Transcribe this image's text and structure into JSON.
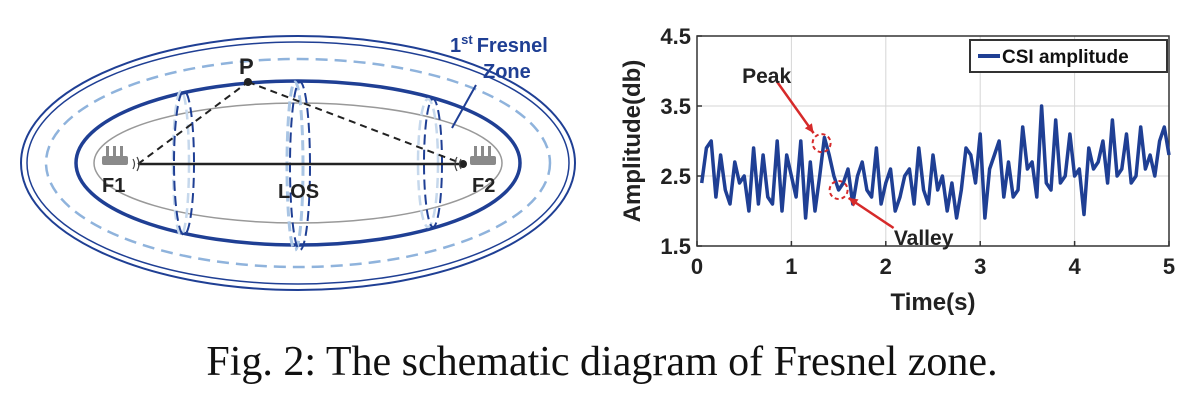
{
  "diagram": {
    "zone_label_sup": "st",
    "zone_label_line1_a": "1",
    "zone_label_line1_b": "Fresnel",
    "zone_label_line2": "Zone",
    "point_p": "P",
    "f1": "F1",
    "f2": "F2",
    "los": "LOS",
    "colors": {
      "zone": "#1f3f94",
      "zone_light": "#8fb3dc",
      "gray": "#999999",
      "router": "#8a8a8a"
    }
  },
  "chart_data": {
    "type": "line",
    "xlabel": "Time(s)",
    "ylabel": "Amplitude(db)",
    "xlim": [
      0,
      5
    ],
    "ylim": [
      1.5,
      4.5
    ],
    "xticks": [
      "0",
      "1",
      "2",
      "3",
      "4",
      "5"
    ],
    "yticks": [
      "1.5",
      "2.5",
      "3.5",
      "4.5"
    ],
    "legend": "top-right",
    "grid": true,
    "series": [
      {
        "name": "CSI amplitude",
        "color": "#1f3f94",
        "x": [
          0.05,
          0.1,
          0.15,
          0.2,
          0.25,
          0.3,
          0.35,
          0.4,
          0.45,
          0.5,
          0.55,
          0.6,
          0.65,
          0.7,
          0.75,
          0.8,
          0.85,
          0.9,
          0.95,
          1.0,
          1.05,
          1.1,
          1.15,
          1.2,
          1.25,
          1.3,
          1.35,
          1.4,
          1.45,
          1.5,
          1.55,
          1.6,
          1.65,
          1.7,
          1.75,
          1.8,
          1.85,
          1.9,
          1.95,
          2.0,
          2.05,
          2.1,
          2.15,
          2.2,
          2.25,
          2.3,
          2.35,
          2.4,
          2.45,
          2.5,
          2.55,
          2.6,
          2.65,
          2.7,
          2.75,
          2.8,
          2.85,
          2.9,
          2.95,
          3.0,
          3.05,
          3.1,
          3.15,
          3.2,
          3.25,
          3.3,
          3.35,
          3.4,
          3.45,
          3.5,
          3.55,
          3.6,
          3.65,
          3.7,
          3.75,
          3.8,
          3.85,
          3.9,
          3.95,
          4.0,
          4.05,
          4.1,
          4.15,
          4.2,
          4.25,
          4.3,
          4.35,
          4.4,
          4.45,
          4.5,
          4.55,
          4.6,
          4.65,
          4.7,
          4.75,
          4.8,
          4.85,
          4.9,
          4.95,
          5.0
        ],
        "values": [
          2.4,
          2.9,
          3.0,
          2.2,
          2.8,
          2.3,
          2.1,
          2.7,
          2.4,
          2.5,
          2.0,
          2.9,
          2.1,
          2.8,
          2.2,
          2.1,
          3.0,
          2.0,
          2.8,
          2.5,
          2.2,
          3.0,
          1.9,
          2.7,
          2.0,
          2.5,
          3.05,
          2.8,
          2.5,
          2.3,
          2.4,
          2.6,
          2.1,
          2.5,
          2.7,
          2.3,
          2.2,
          2.9,
          2.1,
          2.4,
          2.6,
          2.0,
          2.2,
          2.5,
          2.6,
          2.1,
          2.9,
          2.3,
          2.1,
          2.8,
          2.3,
          2.5,
          2.0,
          2.4,
          1.9,
          2.3,
          2.9,
          2.8,
          2.4,
          3.1,
          1.9,
          2.6,
          2.8,
          3.0,
          2.2,
          2.7,
          2.2,
          2.3,
          3.2,
          2.6,
          2.7,
          2.2,
          3.5,
          2.4,
          2.3,
          3.3,
          2.4,
          2.5,
          3.1,
          2.5,
          2.6,
          1.95,
          2.9,
          2.6,
          2.7,
          3.0,
          2.4,
          3.3,
          2.5,
          2.6,
          3.1,
          2.4,
          2.5,
          3.2,
          2.6,
          2.8,
          2.5,
          3.0,
          3.2,
          2.8
        ]
      }
    ],
    "annotations": [
      {
        "text": "Peak",
        "x": 1.32,
        "y": 2.97
      },
      {
        "text": "Valley",
        "x": 1.5,
        "y": 2.3
      }
    ]
  },
  "caption": "Fig. 2: The schematic diagram of Fresnel zone."
}
